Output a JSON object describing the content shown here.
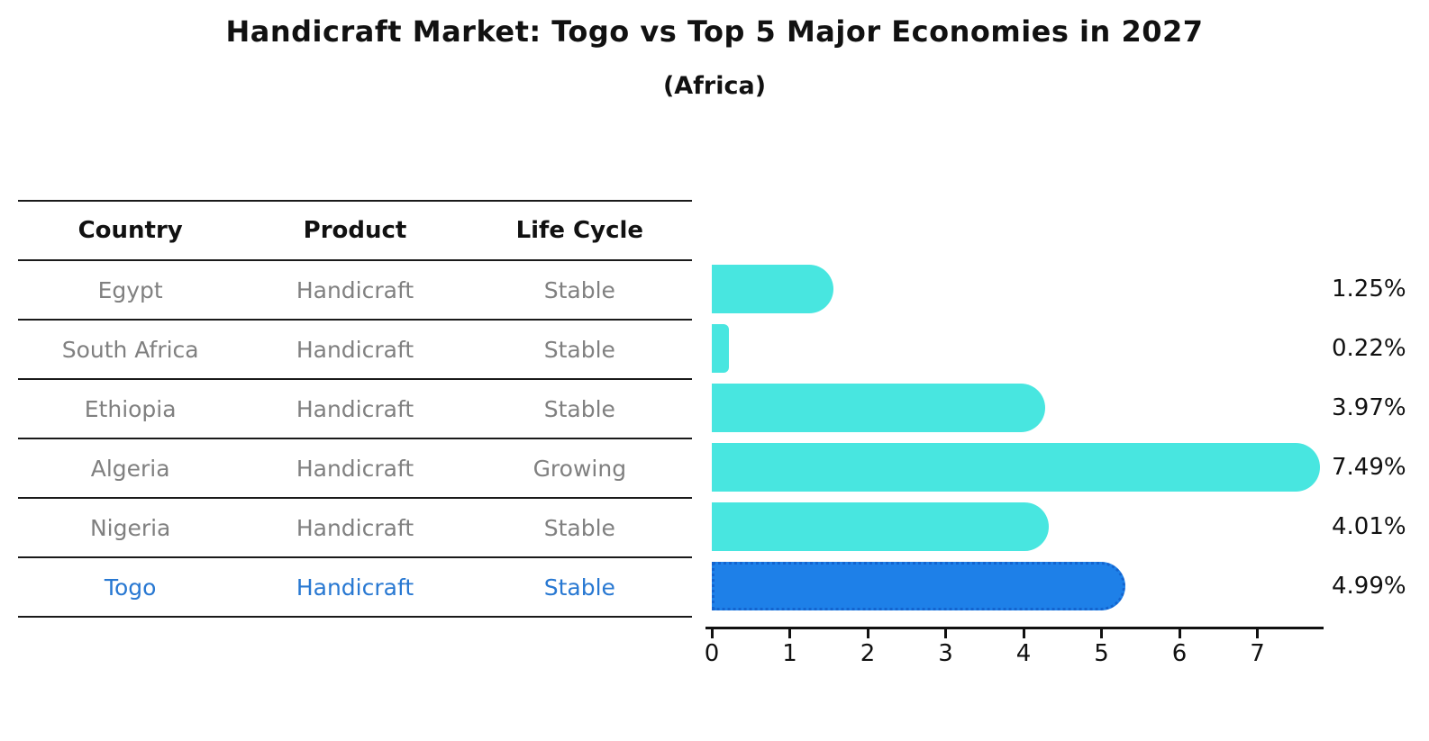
{
  "title": "Handicraft Market: Togo vs Top 5 Major Economies in 2027",
  "subtitle": "(Africa)",
  "table": {
    "headers": [
      "Country",
      "Product",
      "Life Cycle"
    ],
    "rows": [
      {
        "country": "Egypt",
        "product": "Handicraft",
        "life_cycle": "Stable",
        "highlight": false
      },
      {
        "country": "South Africa",
        "product": "Handicraft",
        "life_cycle": "Stable",
        "highlight": false
      },
      {
        "country": "Ethiopia",
        "product": "Handicraft",
        "life_cycle": "Stable",
        "highlight": false
      },
      {
        "country": "Algeria",
        "product": "Handicraft",
        "life_cycle": "Growing",
        "highlight": false
      },
      {
        "country": "Nigeria",
        "product": "Handicraft",
        "life_cycle": "Stable",
        "highlight": false
      },
      {
        "country": "Togo",
        "product": "Handicraft",
        "life_cycle": "Stable",
        "highlight": true
      }
    ]
  },
  "chart_data": {
    "type": "bar",
    "orientation": "horizontal",
    "categories": [
      "Egypt",
      "South Africa",
      "Ethiopia",
      "Algeria",
      "Nigeria",
      "Togo"
    ],
    "values": [
      1.25,
      0.22,
      3.97,
      7.49,
      4.01,
      4.99
    ],
    "value_labels": [
      "1.25%",
      "0.22%",
      "3.97%",
      "7.49%",
      "4.01%",
      "4.99%"
    ],
    "highlight_category": "Togo",
    "x_ticks": [
      0,
      1,
      2,
      3,
      4,
      5,
      6,
      7
    ],
    "xlim": [
      0,
      7.87
    ],
    "xlabel": "",
    "ylabel": "",
    "grid": false,
    "legend": "none",
    "colors": {
      "bar": "#48e6e0",
      "highlight_bar": "#1e80e8",
      "highlight_border": "#1364cf",
      "row_text": "#808080",
      "highlight_text": "#2878d2",
      "axis": "#111111"
    }
  }
}
